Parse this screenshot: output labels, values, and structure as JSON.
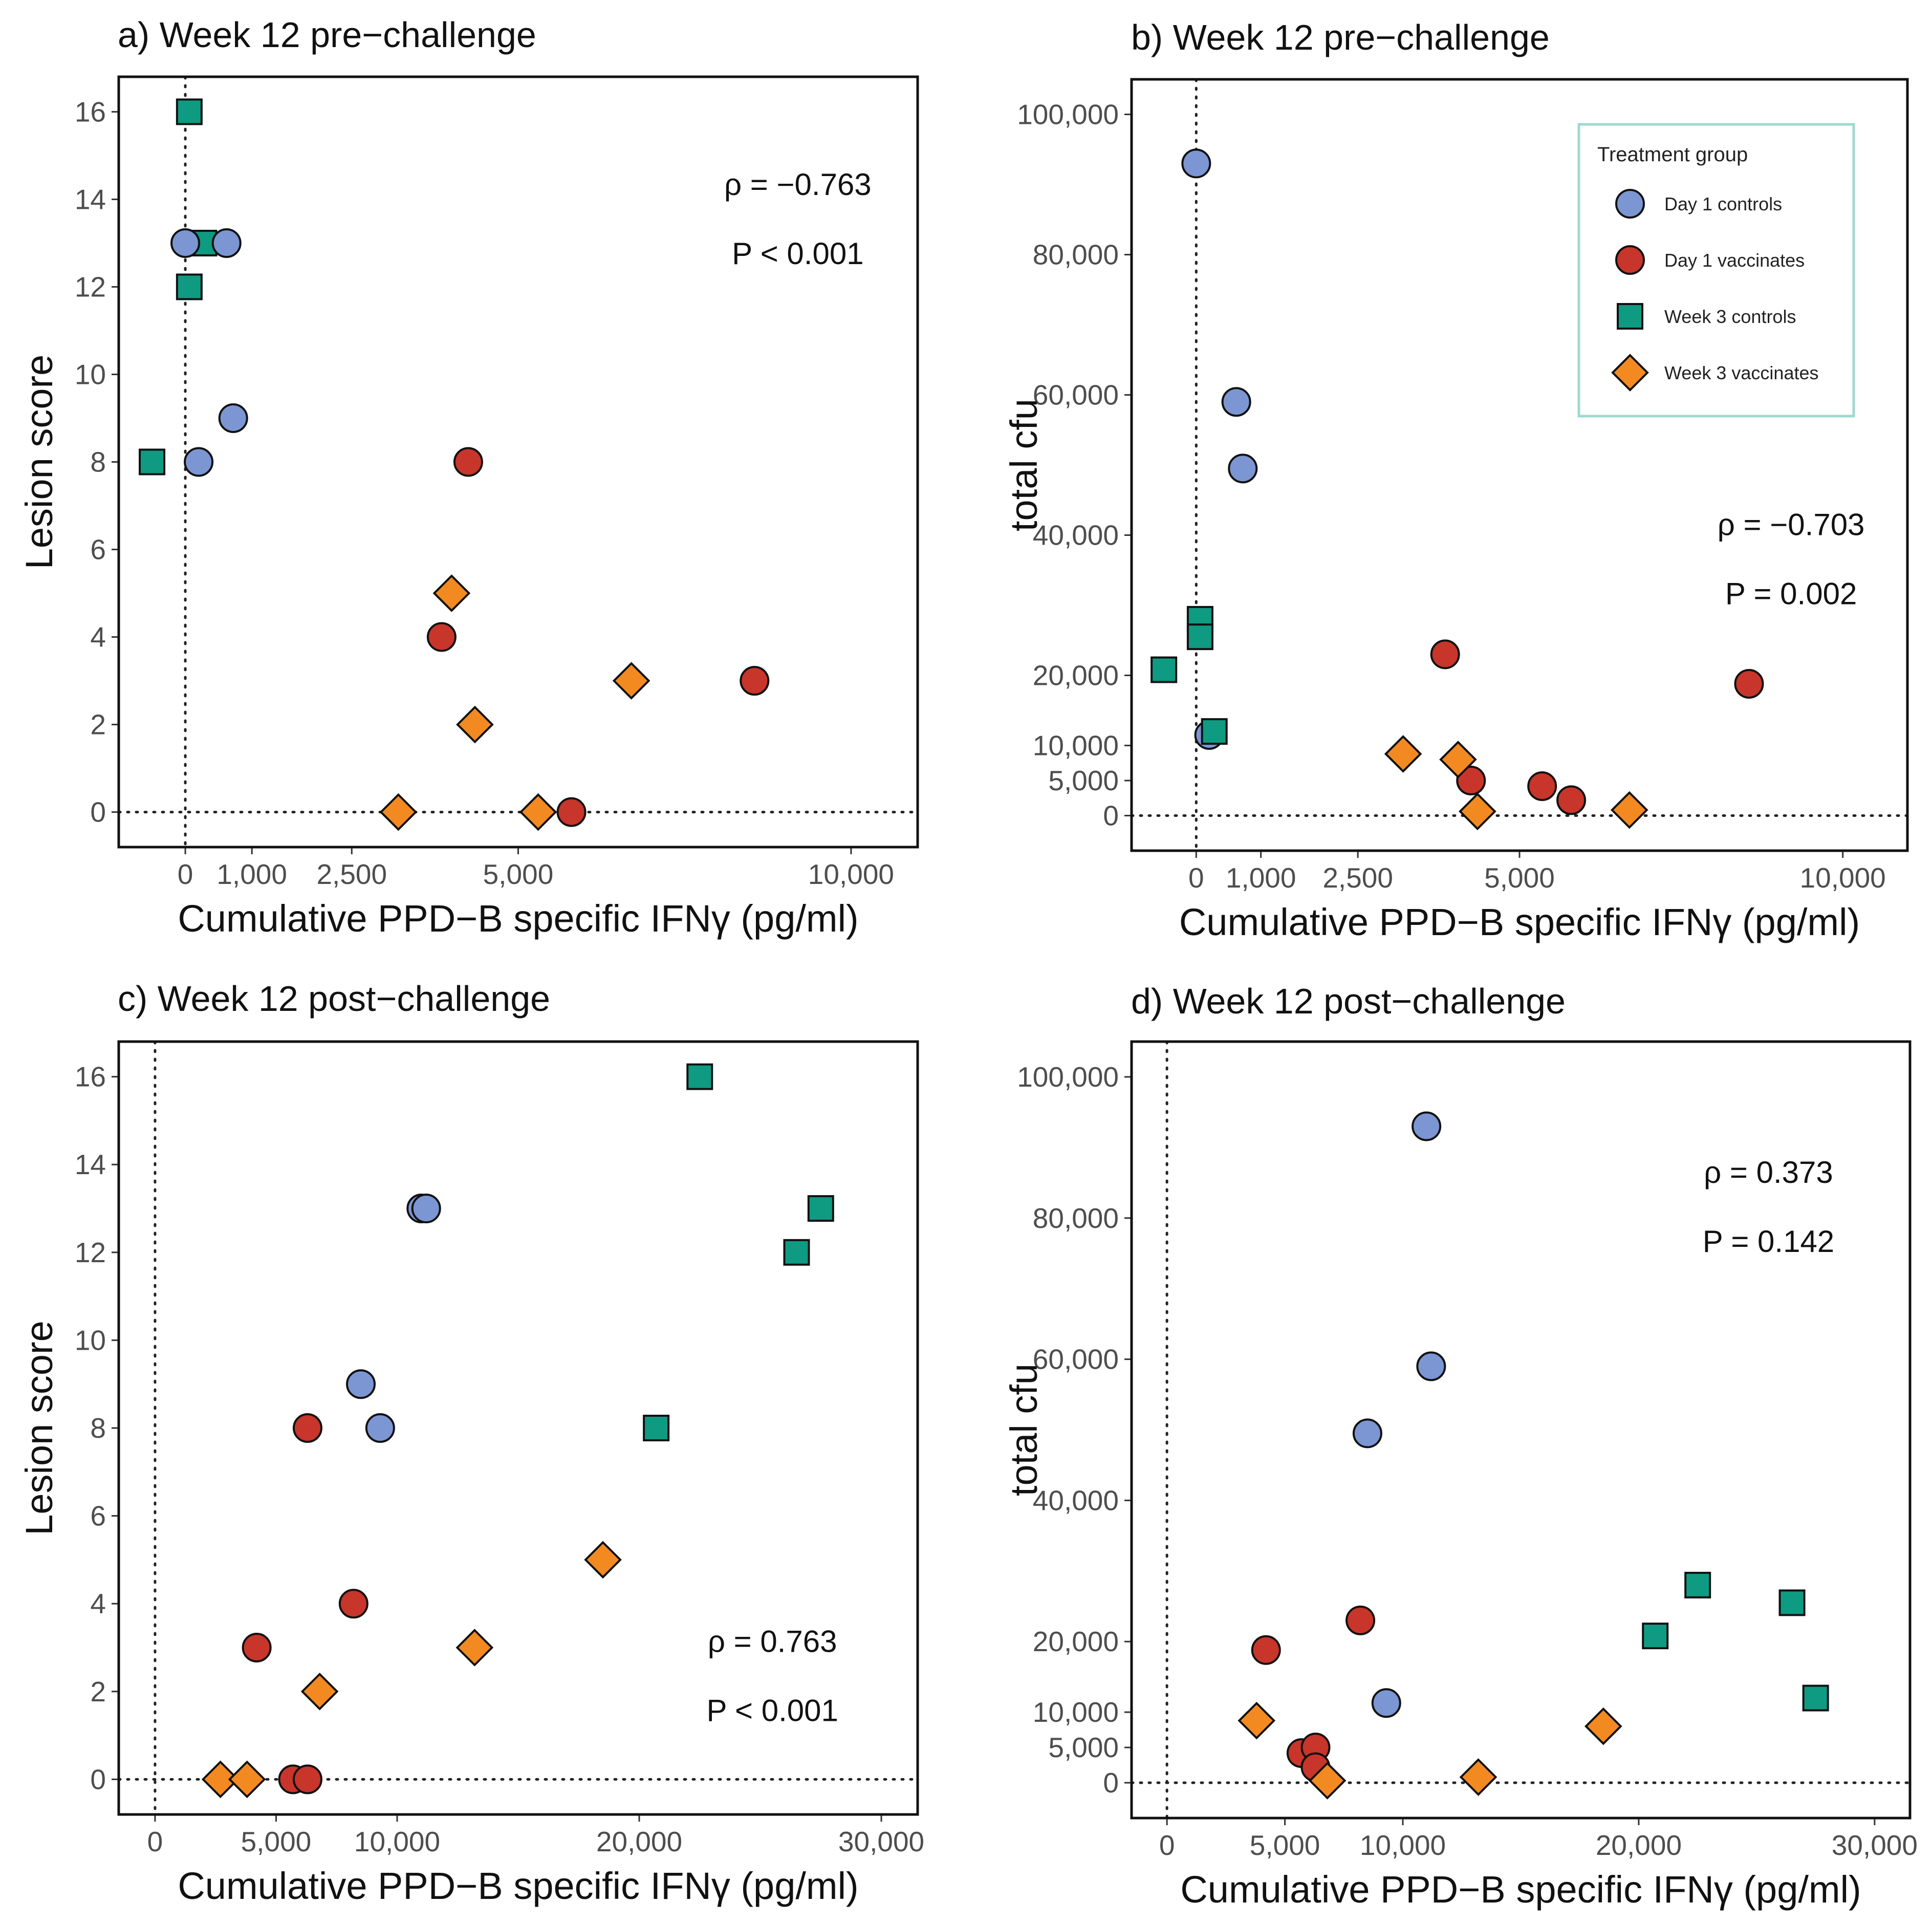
{
  "figure": {
    "groups": [
      {
        "key": "d1c",
        "label": "Day 1 controls",
        "shape": "circle",
        "color": "#7b96d2"
      },
      {
        "key": "d1v",
        "label": "Day 1 vaccinates",
        "shape": "circle",
        "color": "#c8352a"
      },
      {
        "key": "w3c",
        "label": "Week 3 controls",
        "shape": "square",
        "color": "#0f9a82"
      },
      {
        "key": "w3v",
        "label": "Week 3 vaccinates",
        "shape": "diamond",
        "color": "#f28a21"
      }
    ],
    "legend_title": "Treatment group",
    "legend_panel": 1
  },
  "chart_data": [
    {
      "type": "scatter",
      "title": "a) Week 12 pre−challenge",
      "xlabel": "Cumulative PPD−B specific IFNγ (pg/ml)",
      "ylabel": "Lesion score",
      "xlim": [
        -1000,
        11000
      ],
      "ylim": [
        -0.8,
        16.8
      ],
      "xticks": [
        0,
        1000,
        2500,
        5000,
        10000
      ],
      "xtick_labels": [
        "0",
        "1,000",
        "2,500",
        "5,000",
        "10,000"
      ],
      "yticks": [
        0,
        2,
        4,
        6,
        8,
        10,
        12,
        14,
        16
      ],
      "ytick_labels": [
        "0",
        "2",
        "4",
        "6",
        "8",
        "10",
        "12",
        "14",
        "16"
      ],
      "stats": [
        "ρ = −0.763",
        "P < 0.001"
      ],
      "stats_anchor": [
        9200,
        14.1
      ],
      "points": [
        {
          "g": "w3c",
          "x": 60,
          "y": 16
        },
        {
          "g": "w3c",
          "x": 280,
          "y": 13
        },
        {
          "g": "w3c",
          "x": 60,
          "y": 12
        },
        {
          "g": "w3c",
          "x": -500,
          "y": 8
        },
        {
          "g": "d1c",
          "x": 0,
          "y": 13
        },
        {
          "g": "d1c",
          "x": 620,
          "y": 13
        },
        {
          "g": "d1c",
          "x": 720,
          "y": 9
        },
        {
          "g": "d1c",
          "x": 200,
          "y": 8
        },
        {
          "g": "d1v",
          "x": 4250,
          "y": 8
        },
        {
          "g": "d1v",
          "x": 3850,
          "y": 4
        },
        {
          "g": "d1v",
          "x": 8550,
          "y": 3
        },
        {
          "g": "d1v",
          "x": 5800,
          "y": 0
        },
        {
          "g": "w3v",
          "x": 4000,
          "y": 5
        },
        {
          "g": "w3v",
          "x": 6700,
          "y": 3
        },
        {
          "g": "w3v",
          "x": 4350,
          "y": 2
        },
        {
          "g": "w3v",
          "x": 3200,
          "y": 0
        },
        {
          "g": "w3v",
          "x": 5300,
          "y": 0
        }
      ]
    },
    {
      "type": "scatter",
      "title": "b) Week 12 pre−challenge",
      "xlabel": "Cumulative PPD−B specific IFNγ (pg/ml)",
      "ylabel": "total cfu",
      "xlim": [
        -1000,
        11000
      ],
      "ylim": [
        -5000,
        105000
      ],
      "xticks": [
        0,
        1000,
        2500,
        5000,
        10000
      ],
      "xtick_labels": [
        "0",
        "1,000",
        "2,500",
        "5,000",
        "10,000"
      ],
      "yticks": [
        0,
        5000,
        10000,
        20000,
        40000,
        60000,
        80000,
        100000
      ],
      "ytick_labels": [
        "0",
        "5,000",
        "10,000",
        "20,000",
        "40,000",
        "60,000",
        "80,000",
        "100,000"
      ],
      "stats": [
        "ρ = −0.703",
        "P = 0.002"
      ],
      "stats_anchor": [
        9200,
        40000
      ],
      "points": [
        {
          "g": "d1c",
          "x": 0,
          "y": 93000
        },
        {
          "g": "d1c",
          "x": 620,
          "y": 59000
        },
        {
          "g": "d1c",
          "x": 720,
          "y": 49500
        },
        {
          "g": "d1c",
          "x": 200,
          "y": 11500
        },
        {
          "g": "w3c",
          "x": 60,
          "y": 28000
        },
        {
          "g": "w3c",
          "x": 60,
          "y": 25500
        },
        {
          "g": "w3c",
          "x": -500,
          "y": 20800
        },
        {
          "g": "w3c",
          "x": 280,
          "y": 12000
        },
        {
          "g": "d1v",
          "x": 3850,
          "y": 23000
        },
        {
          "g": "d1v",
          "x": 8550,
          "y": 18800
        },
        {
          "g": "d1v",
          "x": 4250,
          "y": 5000
        },
        {
          "g": "d1v",
          "x": 5350,
          "y": 4200
        },
        {
          "g": "d1v",
          "x": 5800,
          "y": 2200
        },
        {
          "g": "w3v",
          "x": 3200,
          "y": 8800
        },
        {
          "g": "w3v",
          "x": 4050,
          "y": 8000
        },
        {
          "g": "w3v",
          "x": 4350,
          "y": 600
        },
        {
          "g": "w3v",
          "x": 6700,
          "y": 800
        }
      ]
    },
    {
      "type": "scatter",
      "title": "c) Week 12 post−challenge",
      "xlabel": "Cumulative PPD−B specific IFNγ (pg/ml)",
      "ylabel": "Lesion score",
      "xlim": [
        -1500,
        31500
      ],
      "ylim": [
        -0.8,
        16.8
      ],
      "xticks": [
        0,
        5000,
        10000,
        20000,
        30000
      ],
      "xtick_labels": [
        "0",
        "5,000",
        "10,000",
        "20,000",
        "30,000"
      ],
      "yticks": [
        0,
        2,
        4,
        6,
        8,
        10,
        12,
        14,
        16
      ],
      "ytick_labels": [
        "0",
        "2",
        "4",
        "6",
        "8",
        "10",
        "12",
        "14",
        "16"
      ],
      "stats": [
        "ρ = 0.763",
        "P < 0.001"
      ],
      "stats_anchor": [
        25500,
        2.9
      ],
      "points": [
        {
          "g": "w3c",
          "x": 22500,
          "y": 16
        },
        {
          "g": "w3c",
          "x": 27500,
          "y": 13
        },
        {
          "g": "w3c",
          "x": 26500,
          "y": 12
        },
        {
          "g": "w3c",
          "x": 20700,
          "y": 8
        },
        {
          "g": "d1c",
          "x": 11000,
          "y": 13
        },
        {
          "g": "d1c",
          "x": 11200,
          "y": 13
        },
        {
          "g": "d1c",
          "x": 8500,
          "y": 9
        },
        {
          "g": "d1c",
          "x": 9300,
          "y": 8
        },
        {
          "g": "d1v",
          "x": 6300,
          "y": 8
        },
        {
          "g": "d1v",
          "x": 8200,
          "y": 4
        },
        {
          "g": "d1v",
          "x": 4200,
          "y": 3
        },
        {
          "g": "d1v",
          "x": 5700,
          "y": 0
        },
        {
          "g": "d1v",
          "x": 6300,
          "y": 0
        },
        {
          "g": "w3v",
          "x": 18500,
          "y": 5
        },
        {
          "g": "w3v",
          "x": 13200,
          "y": 3
        },
        {
          "g": "w3v",
          "x": 6800,
          "y": 2
        },
        {
          "g": "w3v",
          "x": 2700,
          "y": 0
        },
        {
          "g": "w3v",
          "x": 3800,
          "y": 0
        }
      ]
    },
    {
      "type": "scatter",
      "title": "d) Week 12 post−challenge",
      "xlabel": "Cumulative PPD−B specific IFNγ (pg/ml)",
      "ylabel": "total cfu",
      "xlim": [
        -1500,
        31500
      ],
      "ylim": [
        -5000,
        105000
      ],
      "xticks": [
        0,
        5000,
        10000,
        20000,
        30000
      ],
      "xtick_labels": [
        "0",
        "5,000",
        "10,000",
        "20,000",
        "30,000"
      ],
      "yticks": [
        0,
        5000,
        10000,
        20000,
        40000,
        60000,
        80000,
        100000
      ],
      "ytick_labels": [
        "0",
        "5,000",
        "10,000",
        "20,000",
        "40,000",
        "60,000",
        "80,000",
        "100,000"
      ],
      "stats": [
        "ρ = 0.373",
        "P = 0.142"
      ],
      "stats_anchor": [
        25500,
        85000
      ],
      "points": [
        {
          "g": "d1c",
          "x": 11000,
          "y": 93000
        },
        {
          "g": "d1c",
          "x": 11200,
          "y": 59000
        },
        {
          "g": "d1c",
          "x": 8500,
          "y": 49500
        },
        {
          "g": "d1c",
          "x": 9300,
          "y": 11300
        },
        {
          "g": "w3c",
          "x": 22500,
          "y": 28000
        },
        {
          "g": "w3c",
          "x": 26500,
          "y": 25500
        },
        {
          "g": "w3c",
          "x": 20700,
          "y": 20800
        },
        {
          "g": "w3c",
          "x": 27500,
          "y": 12000
        },
        {
          "g": "d1v",
          "x": 8200,
          "y": 23000
        },
        {
          "g": "d1v",
          "x": 4200,
          "y": 18800
        },
        {
          "g": "d1v",
          "x": 5700,
          "y": 4200
        },
        {
          "g": "d1v",
          "x": 6300,
          "y": 5000
        },
        {
          "g": "d1v",
          "x": 6300,
          "y": 2200
        },
        {
          "g": "w3v",
          "x": 3800,
          "y": 8800
        },
        {
          "g": "w3v",
          "x": 18500,
          "y": 8000
        },
        {
          "g": "w3v",
          "x": 13200,
          "y": 800
        },
        {
          "g": "w3v",
          "x": 6800,
          "y": 300
        }
      ]
    }
  ]
}
